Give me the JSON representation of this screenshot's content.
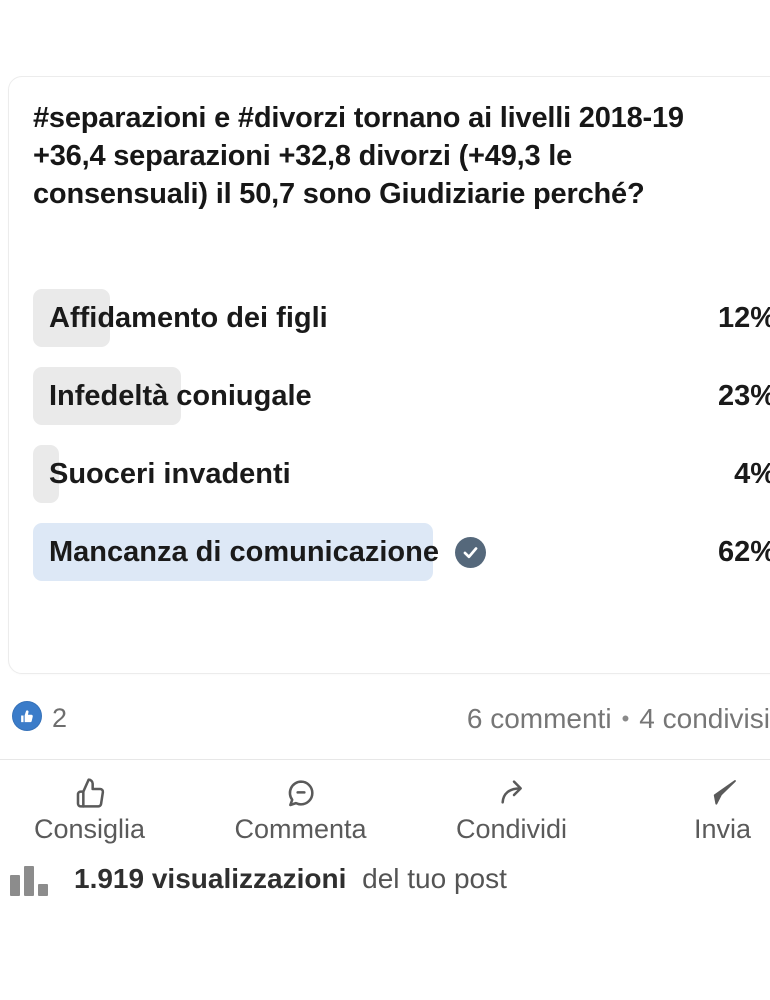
{
  "post": {
    "title_lines": [
      "#separazioni e #divorzi tornano ai livelli 2018-19",
      "+36,4 separazioni +32,8 divorzi (+49,3 le",
      "consensuali) il 50,7 sono Giudiziarie perché?"
    ]
  },
  "poll": {
    "options": [
      {
        "label": "Affidamento dei figli",
        "percent": 12,
        "percent_label": "12%",
        "selected": false
      },
      {
        "label": "Infedeltà coniugale",
        "percent": 23,
        "percent_label": "23%",
        "selected": false
      },
      {
        "label": "Suoceri invadenti",
        "percent": 4,
        "percent_label": "4%",
        "selected": false
      },
      {
        "label": "Mancanza di comunicazione",
        "percent": 62,
        "percent_label": "62%",
        "selected": true
      }
    ],
    "colors": {
      "bar_unselected": "#eaeaea",
      "bar_selected": "#dde8f6",
      "check_circle": "#55687b"
    }
  },
  "social": {
    "reaction_count": "2",
    "comments_label": "6 commenti",
    "separator": "•",
    "shares_label": "4 condivisi",
    "like_badge_color": "#3b7cc9"
  },
  "actions": [
    {
      "label": "Consiglia"
    },
    {
      "label": "Commenta"
    },
    {
      "label": "Condividi"
    },
    {
      "label": "Invia"
    }
  ],
  "views": {
    "count_text": "1.919 visualizzazioni",
    "suffix_text": "del tuo post"
  }
}
